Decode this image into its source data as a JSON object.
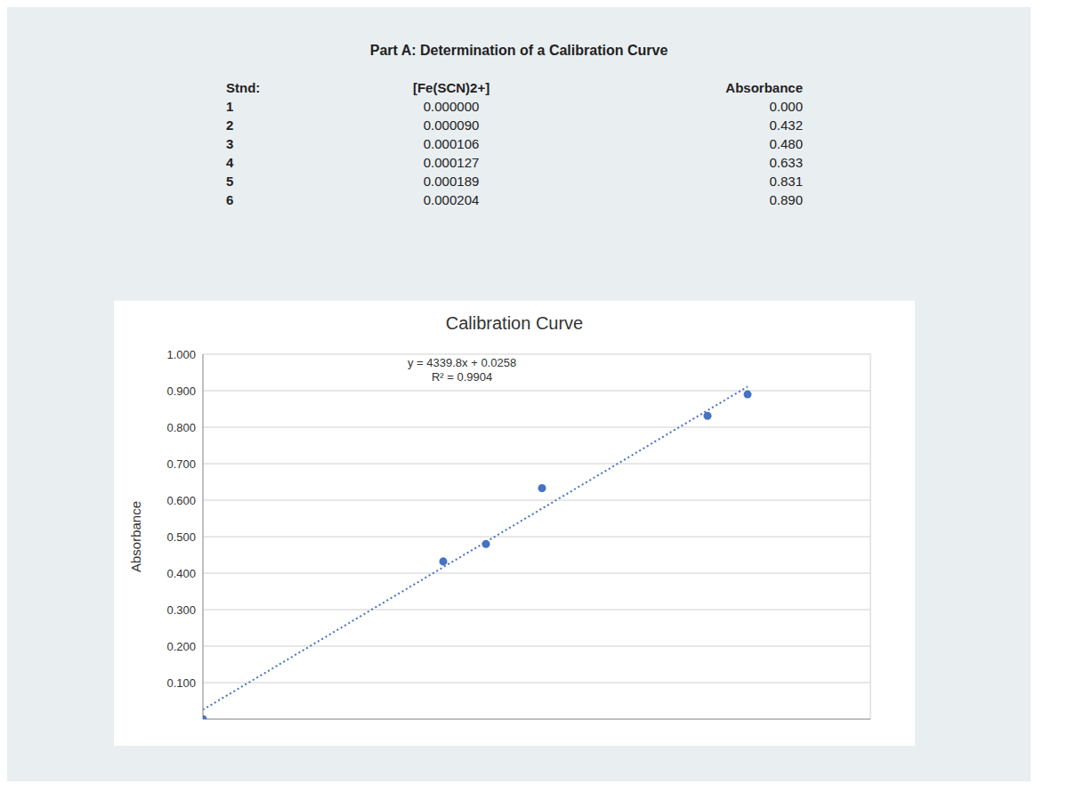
{
  "title": "Part A: Determination of a Calibration Curve",
  "table": {
    "columns": [
      "Stnd:",
      "[Fe(SCN)2+]",
      "Absorbance"
    ],
    "rows": [
      [
        "1",
        "0.000000",
        "0.000"
      ],
      [
        "2",
        "0.000090",
        "0.432"
      ],
      [
        "3",
        "0.000106",
        "0.480"
      ],
      [
        "4",
        "0.000127",
        "0.633"
      ],
      [
        "5",
        "0.000189",
        "0.831"
      ],
      [
        "6",
        "0.000204",
        "0.890"
      ]
    ]
  },
  "chart_data": {
    "type": "scatter",
    "title": "Calibration Curve",
    "y_label": "Absorbance",
    "x": [
      0,
      9e-05,
      0.000106,
      0.000127,
      0.000189,
      0.000204
    ],
    "values": [
      0,
      0.432,
      0.48,
      0.633,
      0.831,
      0.89
    ],
    "color": "#4472c4",
    "marker": "circle",
    "xlim": [
      0,
      0.00025
    ],
    "xticks": [
      0,
      5e-05,
      0.0001,
      0.00015,
      0.0002,
      0.00025
    ],
    "ylim": [
      0,
      1
    ],
    "yticks": [
      {
        "value": 0.1,
        "label": "0.100"
      },
      {
        "value": 0.2,
        "label": "0.200"
      },
      {
        "value": 0.3,
        "label": "0.300"
      },
      {
        "value": 0.4,
        "label": "0.400"
      },
      {
        "value": 0.5,
        "label": "0.500"
      },
      {
        "value": 0.6,
        "label": "0.600"
      },
      {
        "value": 0.7,
        "label": "0.700"
      },
      {
        "value": 0.8,
        "label": "0.800"
      },
      {
        "value": 0.9,
        "label": "0.900"
      },
      {
        "value": 1,
        "label": "1.000"
      }
    ],
    "grid": true,
    "tick_labels": "y",
    "trendline": {
      "slope": 4339.8,
      "intercept": 0.0258,
      "equation": "y = 4339.8x + 0.0258",
      "r_squared_label": "R² = 0.9904",
      "line_style": "dotted"
    }
  }
}
